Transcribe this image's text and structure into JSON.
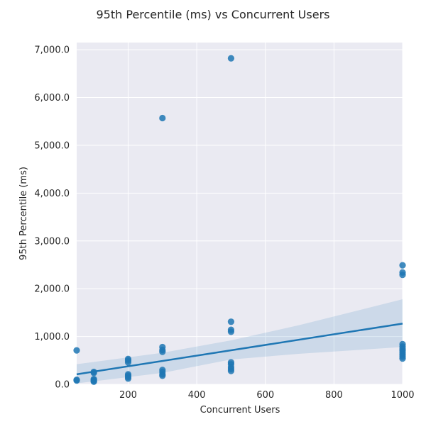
{
  "chart_data": {
    "type": "scatter",
    "title": "95th Percentile (ms) vs Concurrent Users",
    "xlabel": "Concurrent Users",
    "ylabel": "95th Percentile (ms)",
    "xlim": [
      50,
      1000
    ],
    "ylim": [
      0,
      7150
    ],
    "x_ticks": [
      200,
      400,
      600,
      800,
      1000
    ],
    "x_tick_labels": [
      "200",
      "400",
      "600",
      "800",
      "1000"
    ],
    "y_ticks": [
      0,
      1000,
      2000,
      3000,
      4000,
      5000,
      6000,
      7000
    ],
    "y_tick_labels": [
      "0.0",
      "1,000.0",
      "2,000.0",
      "3,000.0",
      "4,000.0",
      "5,000.0",
      "6,000.0",
      "7,000.0"
    ],
    "grid": true,
    "points": [
      {
        "x": 50,
        "y": 710
      },
      {
        "x": 50,
        "y": 95
      },
      {
        "x": 50,
        "y": 80
      },
      {
        "x": 100,
        "y": 260
      },
      {
        "x": 100,
        "y": 240
      },
      {
        "x": 100,
        "y": 110
      },
      {
        "x": 100,
        "y": 90
      },
      {
        "x": 100,
        "y": 70
      },
      {
        "x": 100,
        "y": 55
      },
      {
        "x": 200,
        "y": 530
      },
      {
        "x": 200,
        "y": 500
      },
      {
        "x": 200,
        "y": 460
      },
      {
        "x": 200,
        "y": 210
      },
      {
        "x": 200,
        "y": 180
      },
      {
        "x": 200,
        "y": 150
      },
      {
        "x": 200,
        "y": 120
      },
      {
        "x": 300,
        "y": 5570
      },
      {
        "x": 300,
        "y": 780
      },
      {
        "x": 300,
        "y": 720
      },
      {
        "x": 300,
        "y": 680
      },
      {
        "x": 300,
        "y": 300
      },
      {
        "x": 300,
        "y": 260
      },
      {
        "x": 300,
        "y": 210
      },
      {
        "x": 300,
        "y": 180
      },
      {
        "x": 500,
        "y": 6820
      },
      {
        "x": 500,
        "y": 1310
      },
      {
        "x": 500,
        "y": 1140
      },
      {
        "x": 500,
        "y": 1100
      },
      {
        "x": 500,
        "y": 460
      },
      {
        "x": 500,
        "y": 420
      },
      {
        "x": 500,
        "y": 360
      },
      {
        "x": 500,
        "y": 320
      },
      {
        "x": 500,
        "y": 280
      },
      {
        "x": 1000,
        "y": 2490
      },
      {
        "x": 1000,
        "y": 2340
      },
      {
        "x": 1000,
        "y": 2290
      },
      {
        "x": 1000,
        "y": 840
      },
      {
        "x": 1000,
        "y": 790
      },
      {
        "x": 1000,
        "y": 740
      },
      {
        "x": 1000,
        "y": 700
      },
      {
        "x": 1000,
        "y": 660
      },
      {
        "x": 1000,
        "y": 620
      },
      {
        "x": 1000,
        "y": 580
      },
      {
        "x": 1000,
        "y": 540
      }
    ],
    "regression": {
      "x": [
        50,
        1000
      ],
      "y": [
        210,
        1270
      ]
    },
    "confidence_band": {
      "x": [
        50,
        300,
        500,
        700,
        1000
      ],
      "upper": [
        420,
        660,
        920,
        1240,
        1780
      ],
      "lower": [
        20,
        240,
        520,
        640,
        780
      ]
    },
    "colors": {
      "points": "#1f77b4",
      "line": "#1f77b4",
      "band": "#1f77b4",
      "plot_background": "#eaeaf2",
      "grid": "#ffffff"
    }
  }
}
